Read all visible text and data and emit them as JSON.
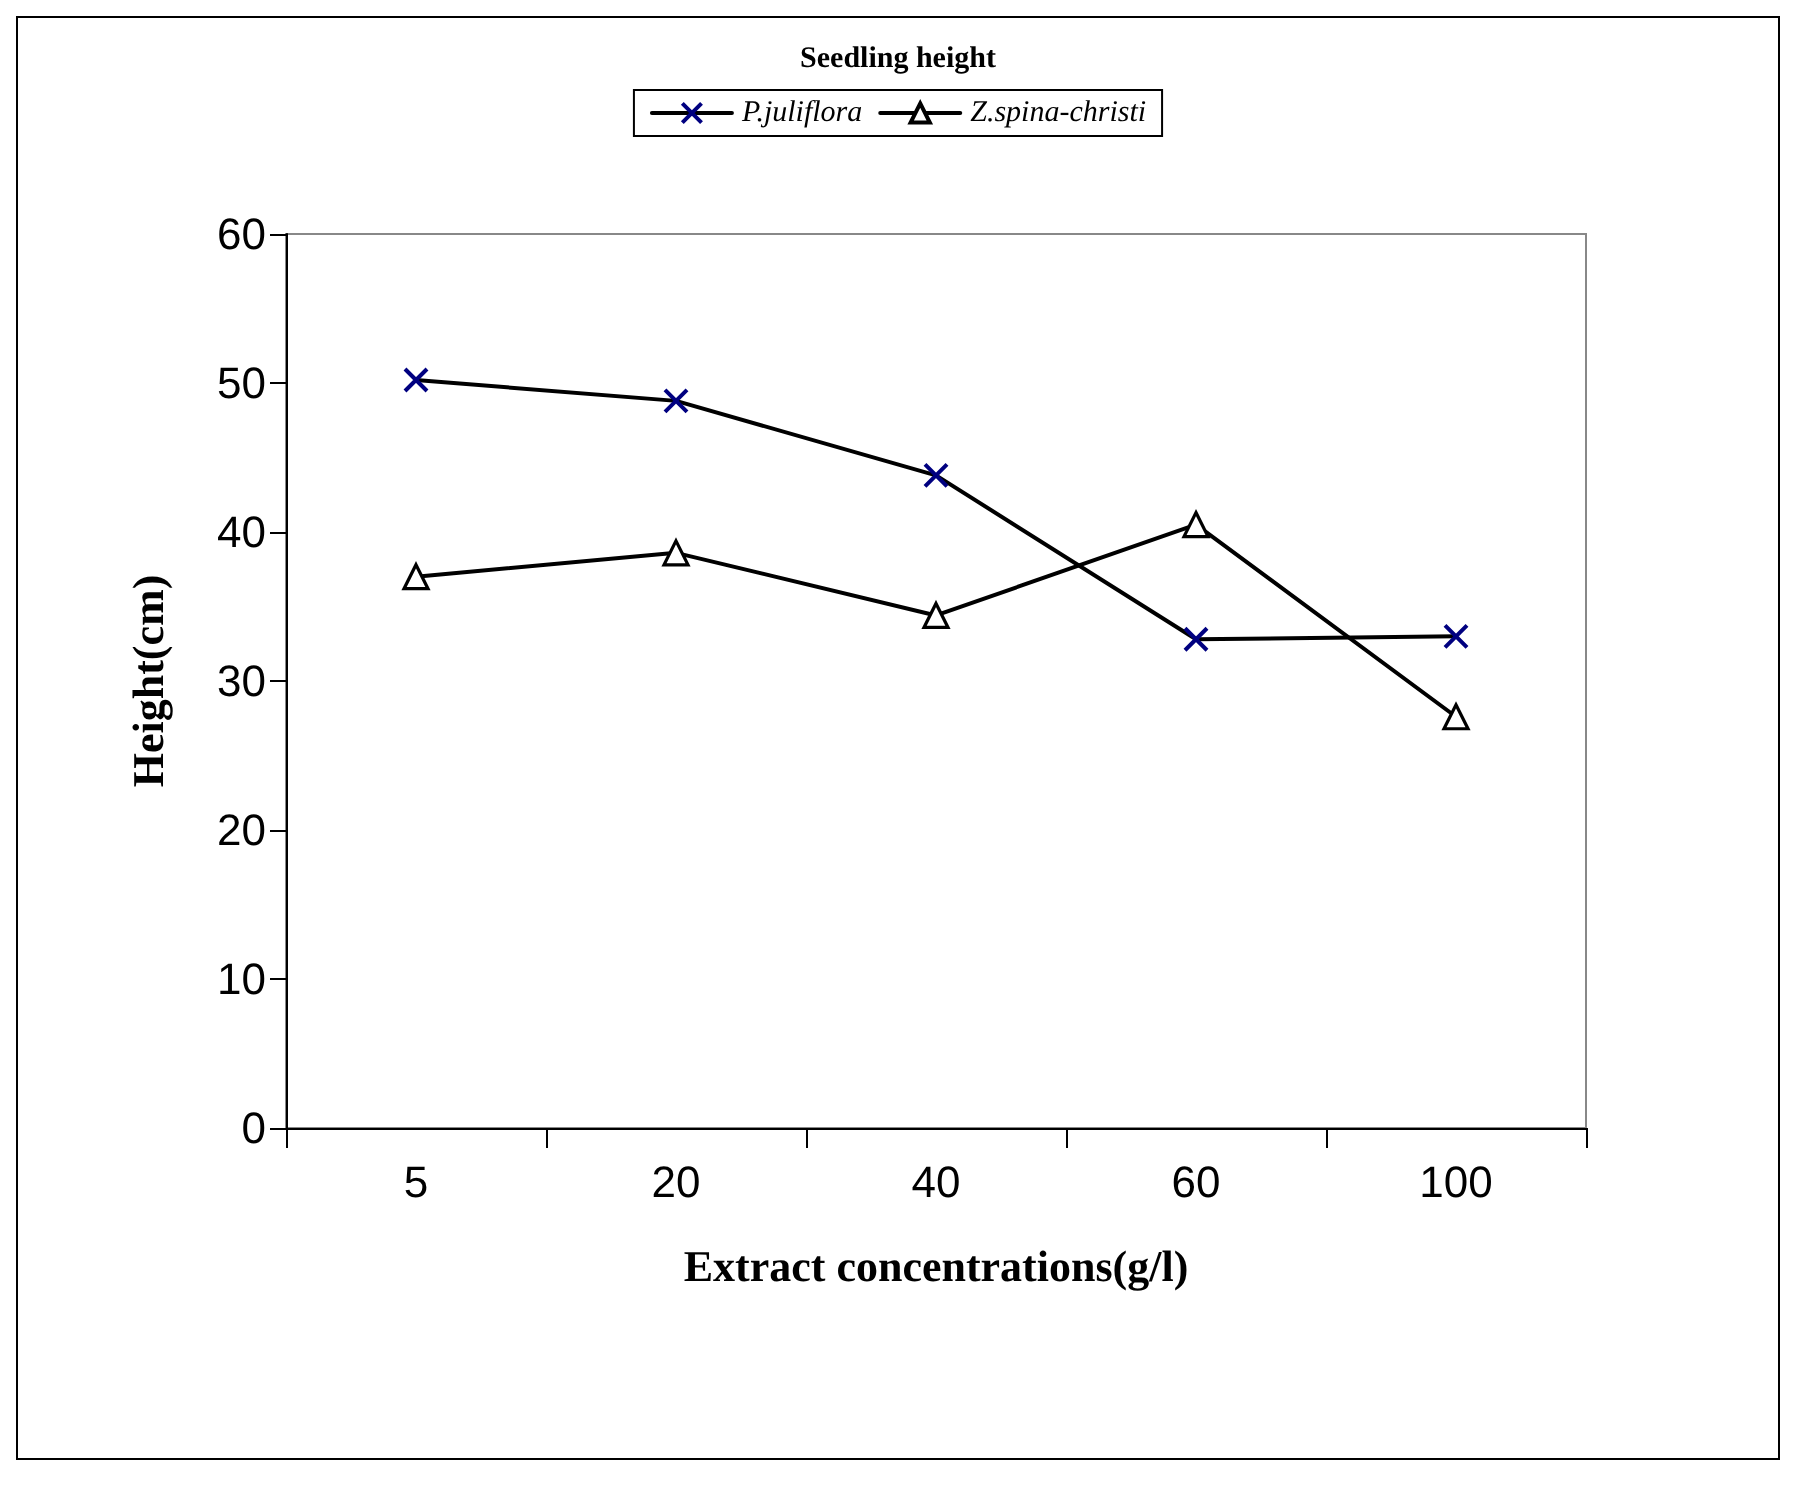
{
  "chart_data": {
    "type": "line",
    "title": "Seedling height",
    "xlabel": "Extract concentrations(g/l)",
    "ylabel": "Height(cm)",
    "categories": [
      "5",
      "20",
      "40",
      "60",
      "100"
    ],
    "series": [
      {
        "name": "P.juliflora",
        "color": "#000080",
        "marker": "cross",
        "values": [
          50.2,
          48.8,
          43.8,
          32.8,
          33.0
        ]
      },
      {
        "name": "Z.spina-christi",
        "color": "#000000",
        "marker": "triangle",
        "values": [
          37.0,
          38.6,
          34.4,
          40.5,
          27.6
        ]
      }
    ],
    "ylim": [
      0,
      60
    ],
    "yticks": [
      0,
      10,
      20,
      30,
      40,
      50,
      60
    ],
    "grid": false,
    "legend": "top",
    "line_style": "solid"
  }
}
